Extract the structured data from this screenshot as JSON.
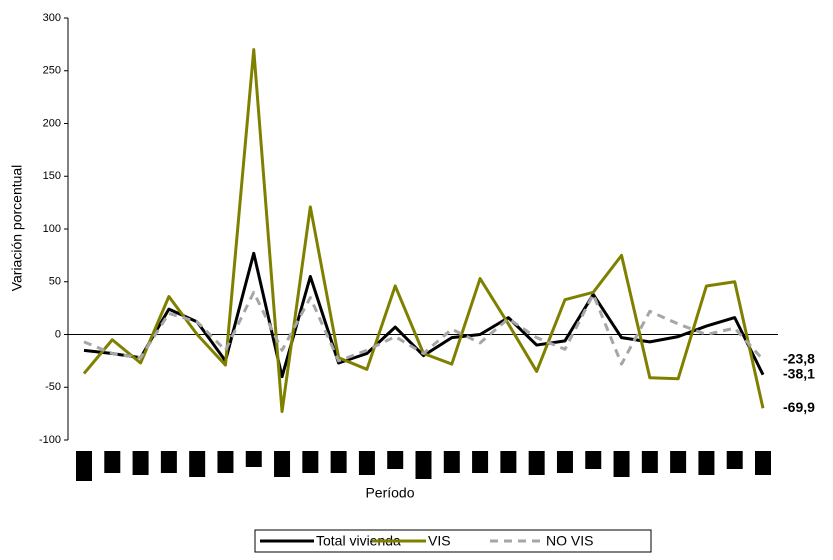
{
  "chart_data": {
    "type": "line",
    "x_label": "Período",
    "y_label": "Variación porcentual",
    "categories": [
      null,
      null,
      null,
      null,
      null,
      null,
      null,
      null,
      null,
      null,
      null,
      null,
      null,
      null,
      null,
      null,
      null,
      null,
      null,
      null,
      null,
      null,
      null,
      null,
      null
    ],
    "ylim": [
      -100,
      300
    ],
    "yticks": [
      -100,
      -50,
      0,
      50,
      100,
      150,
      200,
      250,
      300
    ],
    "legend": "bottom",
    "series": [
      {
        "name": "Total vivienda",
        "color": "#000000",
        "dash": "solid",
        "values": [
          -15,
          -18,
          -22,
          24,
          12,
          -25,
          77,
          -40,
          55,
          -27,
          -18,
          7,
          -20,
          -3,
          0,
          16,
          -10,
          -6,
          38,
          -3,
          -7,
          -2,
          8,
          16,
          -38.1
        ],
        "value_labels": [
          null,
          null,
          null,
          null,
          null,
          null,
          null,
          null,
          null,
          null,
          null,
          null,
          null,
          null,
          null,
          null,
          null,
          null,
          null,
          null,
          null,
          null,
          null,
          null,
          "-38,1"
        ]
      },
      {
        "name": "VIS",
        "color": "#808000",
        "dash": "solid",
        "values": [
          -37,
          -5,
          -27,
          36,
          0,
          -29,
          270,
          -73,
          121,
          -22,
          -33,
          46,
          -18,
          -28,
          53,
          10,
          -35,
          33,
          40,
          75,
          -41,
          -42,
          46,
          50,
          -69.9
        ],
        "value_labels": [
          null,
          null,
          null,
          null,
          null,
          null,
          null,
          null,
          null,
          null,
          null,
          null,
          null,
          null,
          null,
          null,
          null,
          null,
          null,
          null,
          null,
          null,
          null,
          null,
          "-69,9"
        ]
      },
      {
        "name": "NO VIS",
        "color": "#a6a6a6",
        "dash": "dashed",
        "values": [
          -7,
          -18,
          -22,
          20,
          12,
          -15,
          40,
          -15,
          35,
          -25,
          -15,
          -2,
          -18,
          5,
          -8,
          15,
          -3,
          -14,
          38,
          -28,
          22,
          10,
          0,
          6,
          -23.8
        ],
        "value_labels": [
          null,
          null,
          null,
          null,
          null,
          null,
          null,
          null,
          null,
          null,
          null,
          null,
          null,
          null,
          null,
          null,
          null,
          null,
          null,
          null,
          null,
          null,
          null,
          null,
          "-23,8"
        ]
      }
    ]
  }
}
